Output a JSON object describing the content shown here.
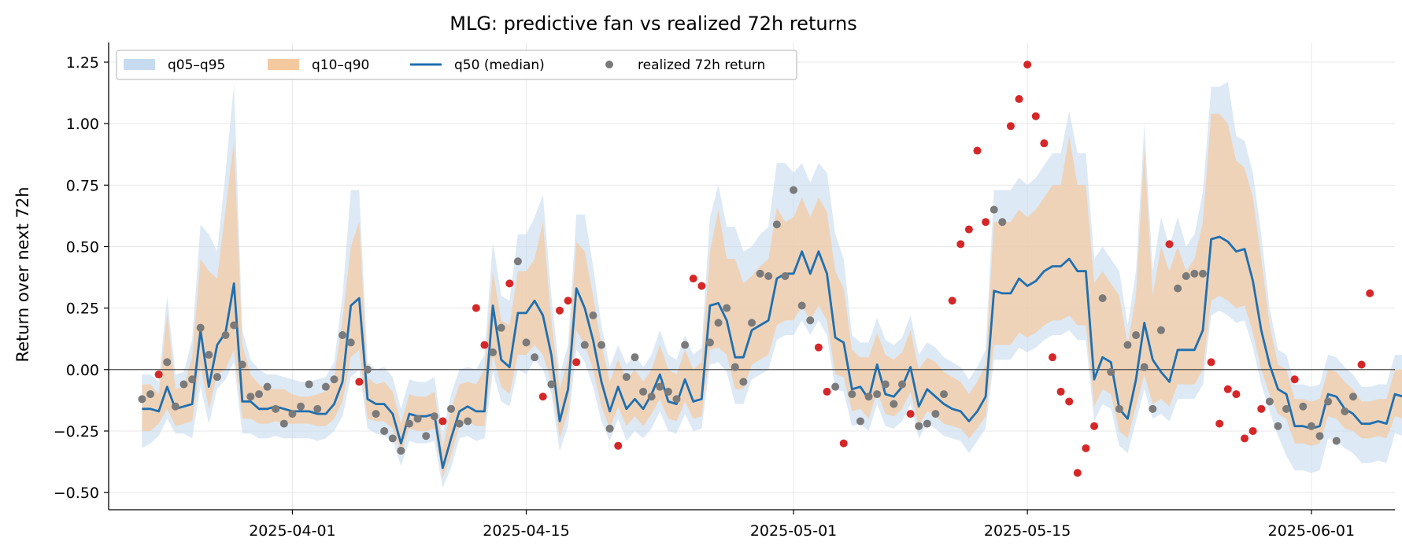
{
  "chart_data": {
    "type": "line",
    "title": "MLG: predictive fan vs realized 72h returns",
    "xlabel": "",
    "ylabel": "Return over next 72h",
    "x_start_date": "2025-03-23",
    "x_step_days": 0.5,
    "xlim": [
      "2025-03-21",
      "2025-06-06"
    ],
    "ylim": [
      -0.57,
      1.33
    ],
    "x_ticks": [
      "2025-04-01",
      "2025-04-15",
      "2025-05-01",
      "2025-05-15",
      "2025-06-01"
    ],
    "y_ticks": [
      -0.5,
      -0.25,
      0.0,
      0.25,
      0.5,
      0.75,
      1.0,
      1.25
    ],
    "y_tick_labels": [
      "−0.50",
      "−0.25",
      "0.00",
      "0.25",
      "0.50",
      "0.75",
      "1.00",
      "1.25"
    ],
    "grid": true,
    "zero_line": 0.0,
    "legend_position": "top-left",
    "legend": {
      "band95": "q05–q95",
      "band90": "q10–q90",
      "median": "q50 (median)",
      "realized": "realized 72h return"
    },
    "colors": {
      "band95": "#c6dbef",
      "band90": "#f5c99f",
      "median": "#1f6fb0",
      "realized_in": "#7a7a7a",
      "realized_out": "#d62728",
      "zero_line": "#333333",
      "grid": "#e8e8e8"
    },
    "q50": [
      -0.16,
      -0.16,
      -0.17,
      -0.07,
      -0.16,
      -0.15,
      -0.14,
      0.16,
      -0.07,
      0.1,
      0.15,
      0.35,
      -0.13,
      -0.13,
      -0.16,
      -0.16,
      -0.15,
      -0.16,
      -0.17,
      -0.17,
      -0.17,
      -0.18,
      -0.18,
      -0.14,
      -0.05,
      0.26,
      0.29,
      -0.12,
      -0.14,
      -0.14,
      -0.18,
      -0.3,
      -0.18,
      -0.19,
      -0.19,
      -0.18,
      -0.4,
      -0.28,
      -0.17,
      -0.15,
      -0.17,
      -0.17,
      0.26,
      0.04,
      0.01,
      0.23,
      0.23,
      0.28,
      0.22,
      0.06,
      -0.21,
      -0.08,
      0.33,
      0.25,
      0.12,
      -0.05,
      -0.17,
      -0.07,
      -0.16,
      -0.12,
      -0.16,
      -0.1,
      -0.02,
      -0.13,
      -0.14,
      -0.04,
      -0.13,
      -0.12,
      0.26,
      0.27,
      0.2,
      0.05,
      0.05,
      0.16,
      0.18,
      0.2,
      0.37,
      0.39,
      0.39,
      0.48,
      0.39,
      0.48,
      0.39,
      0.13,
      0.11,
      -0.08,
      -0.07,
      -0.12,
      0.02,
      -0.1,
      -0.11,
      -0.07,
      0.01,
      -0.15,
      -0.08,
      -0.11,
      -0.14,
      -0.16,
      -0.17,
      -0.21,
      -0.17,
      -0.11,
      0.32,
      0.31,
      0.31,
      0.37,
      0.34,
      0.36,
      0.4,
      0.42,
      0.42,
      0.45,
      0.4,
      0.4,
      -0.04,
      0.05,
      0.03,
      -0.16,
      -0.2,
      -0.04,
      0.19,
      0.04,
      -0.01,
      -0.05,
      0.08,
      0.08,
      0.08,
      0.16,
      0.53,
      0.54,
      0.52,
      0.48,
      0.49,
      0.36,
      0.16,
      0.02,
      -0.08,
      -0.1,
      -0.23,
      -0.23,
      -0.24,
      -0.23,
      -0.1,
      -0.11,
      -0.16,
      -0.18,
      -0.22,
      -0.22,
      -0.21,
      -0.22,
      -0.1,
      -0.11,
      -0.11,
      0.14
    ],
    "q10": [
      -0.25,
      -0.25,
      -0.22,
      -0.16,
      -0.23,
      -0.22,
      -0.21,
      0.02,
      -0.16,
      -0.02,
      0.0,
      0.08,
      -0.2,
      -0.2,
      -0.22,
      -0.22,
      -0.21,
      -0.22,
      -0.22,
      -0.22,
      -0.22,
      -0.23,
      -0.23,
      -0.2,
      -0.13,
      0.05,
      0.08,
      -0.2,
      -0.21,
      -0.21,
      -0.24,
      -0.34,
      -0.24,
      -0.25,
      -0.25,
      -0.24,
      -0.44,
      -0.35,
      -0.23,
      -0.21,
      -0.23,
      -0.23,
      0.06,
      -0.07,
      -0.1,
      0.06,
      0.06,
      0.1,
      0.06,
      -0.05,
      -0.28,
      -0.17,
      0.16,
      0.1,
      0.0,
      -0.15,
      -0.24,
      -0.15,
      -0.23,
      -0.19,
      -0.23,
      -0.18,
      -0.12,
      -0.2,
      -0.21,
      -0.13,
      -0.2,
      -0.19,
      0.08,
      0.09,
      0.06,
      -0.08,
      -0.08,
      0.02,
      0.04,
      0.06,
      0.18,
      0.2,
      0.2,
      0.26,
      0.2,
      0.26,
      0.2,
      -0.02,
      -0.03,
      -0.17,
      -0.16,
      -0.2,
      -0.09,
      -0.18,
      -0.19,
      -0.16,
      -0.09,
      -0.23,
      -0.17,
      -0.19,
      -0.22,
      -0.23,
      -0.24,
      -0.28,
      -0.24,
      -0.19,
      0.1,
      0.1,
      0.1,
      0.15,
      0.13,
      0.15,
      0.18,
      0.2,
      0.2,
      0.22,
      0.18,
      0.18,
      -0.15,
      -0.08,
      -0.1,
      -0.25,
      -0.28,
      -0.15,
      -0.02,
      -0.14,
      -0.12,
      -0.15,
      -0.06,
      -0.06,
      -0.06,
      0.0,
      0.28,
      0.3,
      0.28,
      0.25,
      0.26,
      0.15,
      0.0,
      -0.1,
      -0.18,
      -0.2,
      -0.3,
      -0.3,
      -0.31,
      -0.3,
      -0.19,
      -0.2,
      -0.24,
      -0.25,
      -0.28,
      -0.28,
      -0.27,
      -0.28,
      -0.19,
      -0.2,
      -0.2,
      0.02
    ],
    "q90": [
      -0.06,
      -0.06,
      -0.1,
      0.23,
      -0.08,
      -0.07,
      0.05,
      0.45,
      0.4,
      0.37,
      0.65,
      0.93,
      0.1,
      -0.02,
      -0.06,
      -0.08,
      -0.08,
      -0.08,
      -0.1,
      -0.11,
      -0.11,
      -0.1,
      -0.09,
      -0.03,
      0.2,
      0.5,
      0.6,
      -0.03,
      -0.06,
      -0.05,
      -0.09,
      -0.22,
      -0.1,
      -0.11,
      -0.11,
      -0.09,
      -0.32,
      -0.16,
      -0.06,
      -0.05,
      -0.06,
      0.0,
      0.4,
      0.2,
      0.18,
      0.4,
      0.4,
      0.45,
      0.6,
      0.2,
      -0.08,
      0.04,
      0.52,
      0.48,
      0.3,
      0.1,
      -0.05,
      0.04,
      -0.04,
      0.0,
      -0.05,
      0.0,
      0.1,
      0.0,
      -0.02,
      0.08,
      0.0,
      0.03,
      0.48,
      0.65,
      0.45,
      0.45,
      0.35,
      0.38,
      0.42,
      0.45,
      0.66,
      0.6,
      0.62,
      0.7,
      0.62,
      0.7,
      0.64,
      0.4,
      0.33,
      0.08,
      0.05,
      0.05,
      0.15,
      0.06,
      0.04,
      0.07,
      0.16,
      0.0,
      0.05,
      0.03,
      -0.01,
      -0.03,
      -0.05,
      -0.1,
      -0.05,
      0.02,
      0.6,
      0.6,
      0.6,
      0.65,
      0.62,
      0.65,
      0.7,
      0.75,
      0.75,
      0.95,
      0.75,
      0.75,
      0.35,
      0.4,
      0.35,
      0.3,
      0.1,
      0.3,
      0.9,
      0.3,
      0.5,
      0.4,
      0.5,
      0.4,
      0.45,
      0.6,
      1.04,
      1.04,
      1.0,
      0.85,
      0.82,
      0.7,
      0.45,
      0.18,
      0.02,
      0.0,
      -0.12,
      -0.12,
      -0.13,
      -0.12,
      0.0,
      -0.01,
      -0.05,
      -0.08,
      -0.13,
      -0.13,
      -0.12,
      -0.12,
      0.0,
      0.0,
      0.02,
      0.35
    ],
    "q05": [
      -0.32,
      -0.3,
      -0.27,
      -0.2,
      -0.26,
      -0.26,
      -0.28,
      -0.07,
      -0.22,
      -0.08,
      -0.04,
      0.03,
      -0.26,
      -0.26,
      -0.28,
      -0.28,
      -0.27,
      -0.28,
      -0.28,
      -0.28,
      -0.28,
      -0.29,
      -0.28,
      -0.25,
      -0.19,
      -0.03,
      0.0,
      -0.24,
      -0.26,
      -0.27,
      -0.29,
      -0.39,
      -0.29,
      -0.3,
      -0.3,
      -0.29,
      -0.48,
      -0.4,
      -0.28,
      -0.27,
      -0.29,
      -0.28,
      -0.01,
      -0.13,
      -0.15,
      0.0,
      -0.02,
      0.04,
      0.0,
      -0.1,
      -0.33,
      -0.23,
      0.08,
      0.03,
      -0.07,
      -0.21,
      -0.29,
      -0.2,
      -0.29,
      -0.25,
      -0.28,
      -0.24,
      -0.17,
      -0.25,
      -0.26,
      -0.18,
      -0.25,
      -0.24,
      0.02,
      0.03,
      -0.01,
      -0.14,
      -0.14,
      -0.04,
      -0.02,
      0.0,
      0.12,
      0.14,
      0.14,
      0.2,
      0.14,
      0.2,
      0.14,
      -0.08,
      -0.09,
      -0.23,
      -0.22,
      -0.25,
      -0.14,
      -0.23,
      -0.24,
      -0.21,
      -0.14,
      -0.28,
      -0.22,
      -0.24,
      -0.27,
      -0.28,
      -0.29,
      -0.34,
      -0.29,
      -0.24,
      0.04,
      0.04,
      0.04,
      0.09,
      0.07,
      0.09,
      0.12,
      0.14,
      0.14,
      0.16,
      0.12,
      0.12,
      -0.21,
      -0.14,
      -0.16,
      -0.31,
      -0.34,
      -0.21,
      -0.08,
      -0.2,
      -0.18,
      -0.21,
      -0.12,
      -0.12,
      -0.12,
      -0.06,
      0.22,
      0.24,
      0.22,
      0.19,
      0.2,
      0.09,
      -0.06,
      -0.17,
      -0.27,
      -0.35,
      -0.41,
      -0.41,
      -0.42,
      -0.41,
      -0.28,
      -0.29,
      -0.32,
      -0.34,
      -0.38,
      -0.38,
      -0.37,
      -0.38,
      -0.26,
      -0.27,
      -0.27,
      -0.06
    ],
    "q95": [
      -0.02,
      -0.02,
      -0.05,
      0.3,
      -0.02,
      -0.01,
      0.12,
      0.59,
      0.55,
      0.48,
      0.8,
      1.16,
      0.16,
      0.04,
      0.0,
      -0.02,
      -0.02,
      -0.03,
      -0.04,
      -0.05,
      -0.05,
      -0.04,
      -0.03,
      0.03,
      0.3,
      0.73,
      0.73,
      0.03,
      0.0,
      0.01,
      -0.03,
      -0.16,
      -0.04,
      -0.05,
      -0.05,
      -0.03,
      -0.26,
      -0.1,
      0.0,
      0.01,
      0.0,
      0.06,
      0.52,
      0.3,
      0.28,
      0.55,
      0.55,
      0.62,
      0.71,
      0.3,
      -0.02,
      0.1,
      0.63,
      0.63,
      0.42,
      0.18,
      0.01,
      0.1,
      0.02,
      0.06,
      0.01,
      0.06,
      0.16,
      0.06,
      0.04,
      0.14,
      0.06,
      0.09,
      0.62,
      0.75,
      0.58,
      0.58,
      0.48,
      0.5,
      0.55,
      0.58,
      0.84,
      0.84,
      0.8,
      0.84,
      0.76,
      0.84,
      0.8,
      0.55,
      0.45,
      0.14,
      0.11,
      0.11,
      0.21,
      0.12,
      0.1,
      0.13,
      0.22,
      0.06,
      0.11,
      0.09,
      0.05,
      0.03,
      0.01,
      -0.04,
      0.01,
      0.08,
      0.73,
      0.73,
      0.73,
      0.78,
      0.75,
      0.78,
      0.83,
      0.88,
      0.88,
      1.05,
      0.88,
      0.88,
      0.45,
      0.5,
      0.45,
      0.4,
      0.18,
      0.4,
      1.0,
      0.4,
      0.62,
      0.5,
      0.62,
      0.5,
      0.55,
      0.72,
      1.15,
      1.15,
      1.17,
      0.95,
      0.93,
      0.8,
      0.55,
      0.25,
      0.08,
      0.06,
      -0.06,
      -0.06,
      -0.07,
      -0.06,
      0.06,
      0.05,
      0.01,
      -0.02,
      -0.07,
      -0.07,
      -0.06,
      -0.06,
      0.06,
      0.06,
      0.08,
      0.42
    ],
    "realized": [
      -0.12,
      -0.1,
      -0.02,
      0.03,
      -0.15,
      -0.06,
      -0.04,
      0.17,
      0.06,
      -0.03,
      0.14,
      0.18,
      0.02,
      -0.11,
      -0.1,
      -0.07,
      -0.16,
      -0.22,
      -0.18,
      -0.15,
      -0.06,
      -0.16,
      -0.07,
      -0.04,
      0.14,
      0.11,
      -0.05,
      0.0,
      -0.18,
      -0.25,
      -0.28,
      -0.33,
      -0.22,
      -0.2,
      -0.27,
      -0.19,
      -0.21,
      -0.16,
      -0.22,
      -0.21,
      0.25,
      0.1,
      0.07,
      0.17,
      0.35,
      0.44,
      0.11,
      0.05,
      -0.11,
      -0.06,
      0.24,
      0.28,
      0.03,
      0.1,
      0.22,
      0.1,
      -0.24,
      -0.31,
      -0.03,
      0.05,
      -0.09,
      -0.11,
      -0.07,
      -0.09,
      -0.12,
      0.1,
      0.37,
      0.34,
      0.11,
      0.19,
      0.25,
      0.01,
      -0.05,
      0.19,
      0.39,
      0.38,
      0.59,
      0.38,
      0.73,
      0.26,
      0.2,
      0.09,
      -0.09,
      -0.07,
      -0.3,
      -0.1,
      -0.21,
      -0.11,
      -0.1,
      -0.06,
      -0.14,
      -0.06,
      -0.18,
      -0.23,
      -0.22,
      -0.18,
      -0.1,
      0.28,
      0.51,
      0.57,
      0.89,
      0.6,
      0.65,
      0.6,
      0.99,
      1.1,
      1.24,
      1.03,
      0.92,
      0.05,
      -0.09,
      -0.13,
      -0.42,
      -0.32,
      -0.23,
      0.29,
      -0.01,
      -0.16,
      0.1,
      0.14,
      0.01,
      -0.16,
      0.16,
      0.51,
      0.33,
      0.38,
      0.39,
      0.39,
      0.03,
      -0.22,
      -0.08,
      -0.1,
      -0.28,
      -0.25,
      -0.16,
      -0.13,
      -0.23,
      -0.16,
      -0.04,
      -0.15,
      -0.23,
      -0.27,
      -0.13,
      -0.29,
      -0.17,
      -0.11,
      0.02,
      0.31
    ],
    "realized_days": [
      0,
      0.5,
      1,
      1.5,
      2,
      2.5,
      3,
      3.5,
      4,
      4.5,
      5,
      5.5,
      6,
      6.5,
      7,
      7.5,
      8,
      8.5,
      9,
      9.5,
      10,
      10.5,
      11,
      11.5,
      12,
      12.5,
      13,
      13.5,
      14,
      14.5,
      15,
      15.5,
      16,
      16.5,
      17,
      17.5,
      18,
      18.5,
      19,
      19.5,
      20,
      20.5,
      21,
      21.5,
      22,
      22.5,
      23,
      23.5,
      24,
      24.5,
      25,
      25.5,
      26,
      26.5,
      27,
      27.5,
      28,
      28.5,
      29,
      29.5,
      30,
      30.5,
      31,
      31.5,
      32,
      32.5,
      33,
      33.5,
      34,
      34.5,
      35,
      35.5,
      36,
      36.5,
      37,
      37.5,
      38,
      38.5,
      39,
      39.5,
      40,
      40.5,
      41,
      41.5,
      42,
      42.5,
      43,
      43.5,
      44,
      44.5,
      45,
      45.5,
      46,
      46.5,
      47,
      47.5,
      48,
      48.5,
      49,
      49.5,
      50,
      50.5,
      51,
      51.5,
      52,
      52.5,
      53,
      53.5,
      54,
      54.5,
      55,
      55.5,
      56,
      56.5,
      57,
      57.5,
      58,
      58.5,
      59,
      59.5,
      60,
      60.5,
      61,
      61.5,
      62,
      62.5,
      63,
      63.5,
      64,
      64.5,
      65,
      65.5,
      66,
      66.5,
      67,
      67.5,
      68,
      68.5,
      69,
      69.5,
      70,
      70.5,
      71,
      71.5,
      72,
      72.5,
      73,
      73.5,
      74,
      74.5
    ]
  }
}
